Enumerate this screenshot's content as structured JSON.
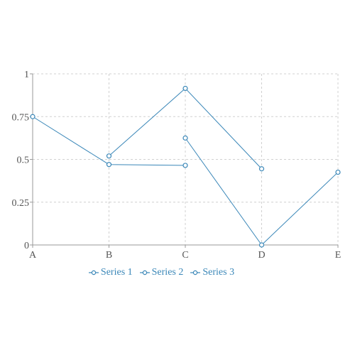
{
  "chart_data": {
    "type": "line",
    "categories": [
      "A",
      "B",
      "C",
      "D",
      "E"
    ],
    "ylim": [
      0,
      1
    ],
    "yticks": [
      "0",
      "0.25",
      "0.5",
      "0.75",
      "1"
    ],
    "grid": true,
    "legend_position": "bottom",
    "series": [
      {
        "name": "Series 1",
        "color": "#3a87b8",
        "values": [
          0.75,
          0.47,
          0.465,
          null,
          null
        ]
      },
      {
        "name": "Series 2",
        "color": "#3a87b8",
        "values": [
          null,
          0.52,
          0.915,
          0.445,
          null
        ]
      },
      {
        "name": "Series 3",
        "color": "#3a87b8",
        "values": [
          null,
          null,
          0.625,
          0.0,
          0.425
        ]
      }
    ]
  }
}
